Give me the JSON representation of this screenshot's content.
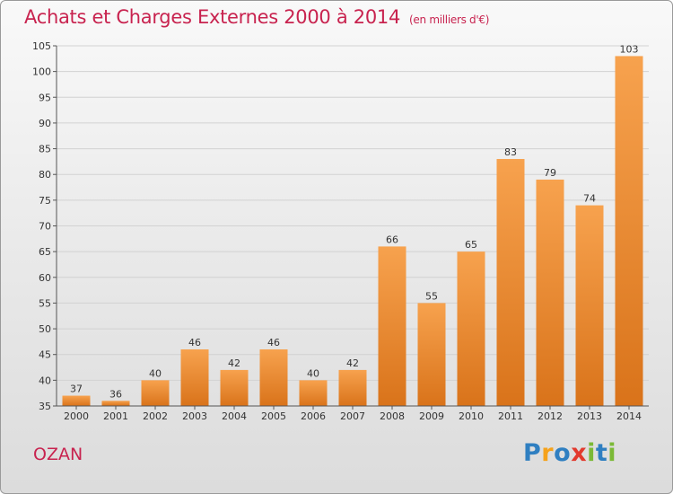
{
  "title": "Achats et Charges Externes 2000 à 2014",
  "unit": "(en milliers d'€)",
  "commune": "OZAN",
  "logo": {
    "letters": [
      "P",
      "r",
      "o",
      "x",
      "i",
      "t",
      "i"
    ],
    "colors": [
      "#2f7fc1",
      "#f5a21b",
      "#2f7fc1",
      "#e23a2e",
      "#7bb936",
      "#2f7fc1",
      "#7bb936"
    ]
  },
  "colors": {
    "bar_top": "#f7a24e",
    "bar_bottom": "#d9731a",
    "axis_text": "#333333",
    "title": "#c8234f"
  },
  "chart_data": {
    "type": "bar",
    "title": "Achats et Charges Externes 2000 à 2014",
    "ylabel": "",
    "xlabel": "",
    "categories": [
      "2000",
      "2001",
      "2002",
      "2003",
      "2004",
      "2005",
      "2006",
      "2007",
      "2008",
      "2009",
      "2010",
      "2011",
      "2012",
      "2013",
      "2014"
    ],
    "values": [
      37,
      36,
      40,
      46,
      42,
      46,
      40,
      42,
      66,
      55,
      65,
      83,
      79,
      74,
      103
    ],
    "ylim": [
      35,
      105
    ],
    "yticks": [
      35,
      40,
      45,
      50,
      55,
      60,
      65,
      70,
      75,
      80,
      85,
      90,
      95,
      100,
      105
    ],
    "grid": "horizontal"
  }
}
